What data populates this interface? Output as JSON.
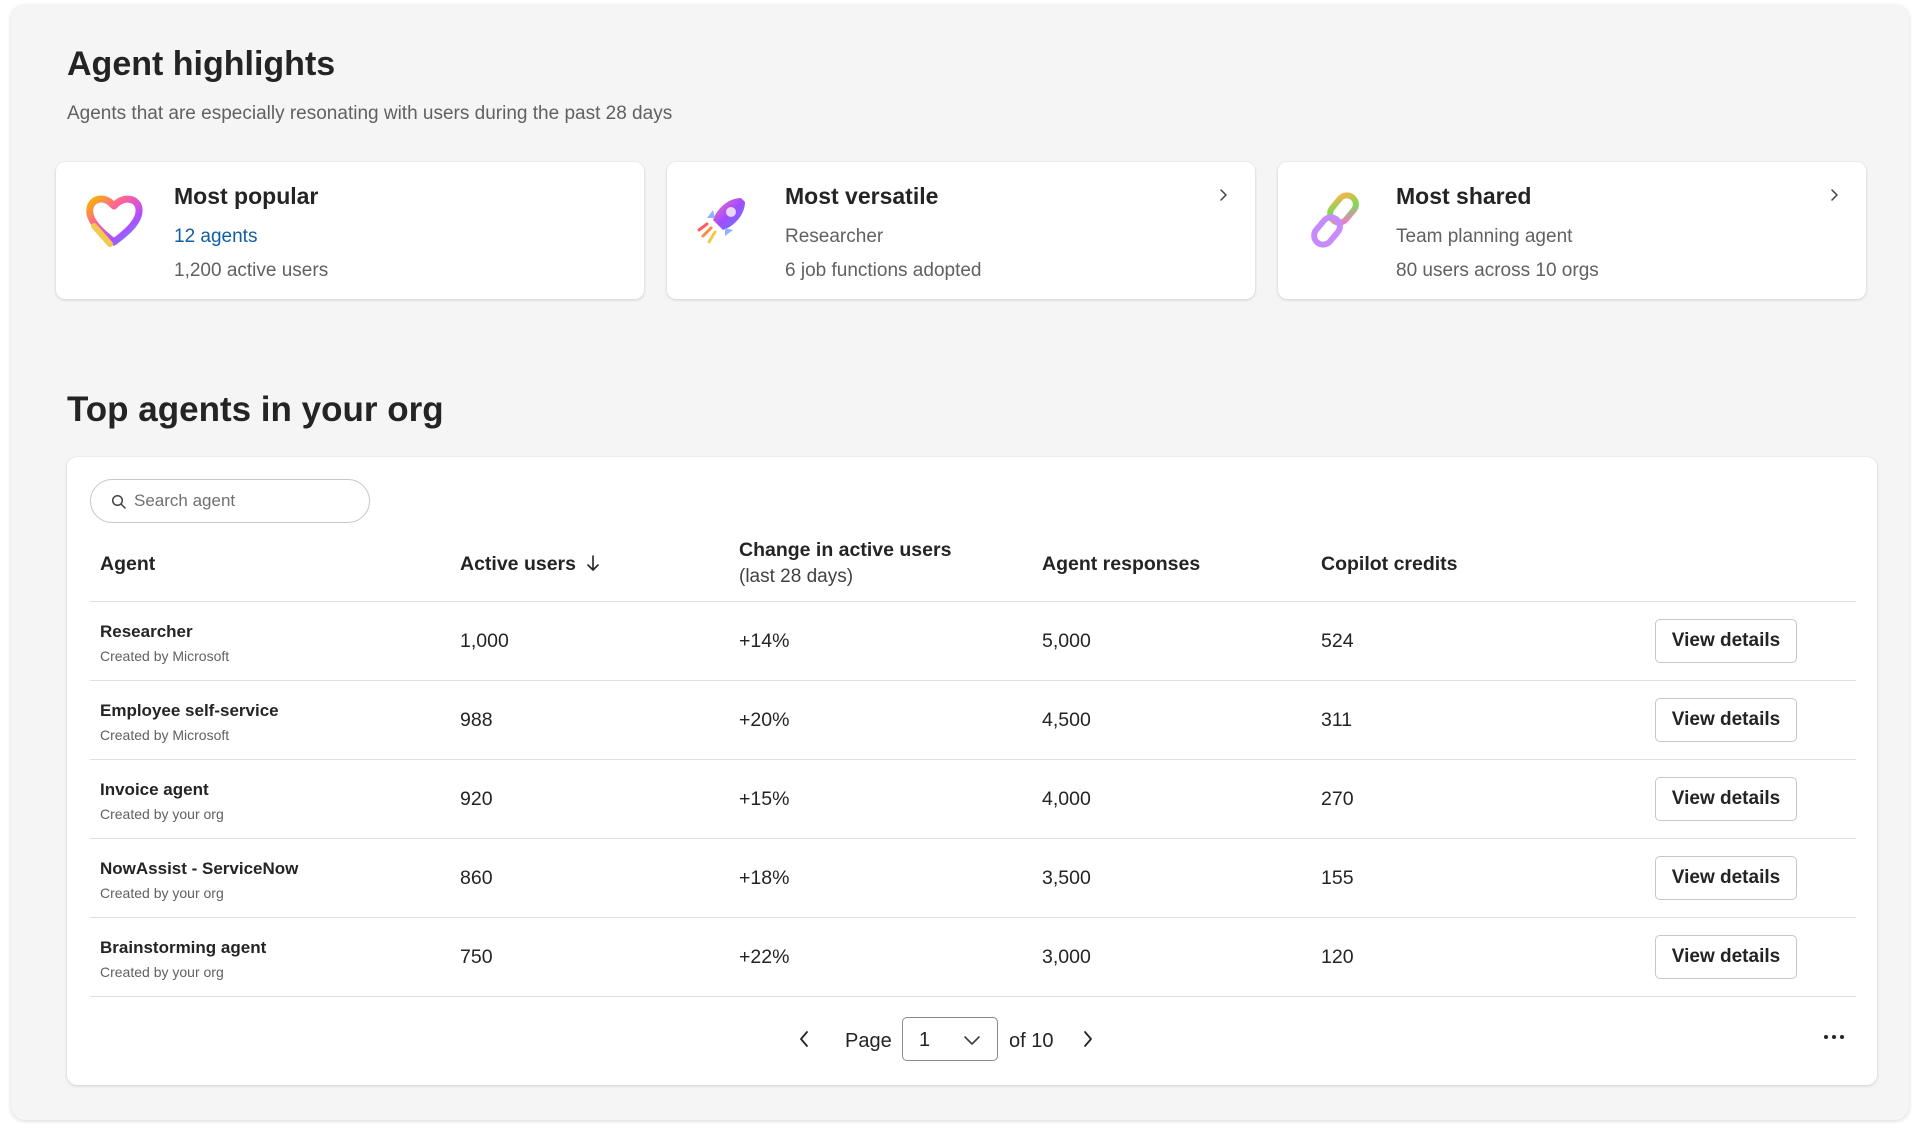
{
  "highlights": {
    "title": "Agent highlights",
    "subtitle": "Agents that are especially resonating with users during the past 28 days",
    "cards": [
      {
        "icon": "heart-icon",
        "title": "Most popular",
        "line1": "12 agents",
        "line2": "1,200 active users",
        "has_chevron": false
      },
      {
        "icon": "rocket-icon",
        "title": "Most versatile",
        "line1": "Researcher",
        "line2": "6 job functions adopted",
        "has_chevron": true
      },
      {
        "icon": "link-chain-icon",
        "title": "Most shared",
        "line1": "Team planning agent",
        "line2": "80 users across 10 orgs",
        "has_chevron": true
      }
    ]
  },
  "top_agents": {
    "title": "Top agents in your org",
    "search_placeholder": "Search agent",
    "columns": {
      "agent": "Agent",
      "active_users": "Active users",
      "change": "Change in active users",
      "change_sub": "(last 28 days)",
      "responses": "Agent responses",
      "credits": "Copilot credits"
    },
    "sort": {
      "column": "active_users",
      "direction": "descending"
    },
    "view_details_label": "View details",
    "rows": [
      {
        "name": "Researcher",
        "creator": "Created by Microsoft",
        "active_users": "1,000",
        "change": "+14%",
        "responses": "5,000",
        "credits": "524"
      },
      {
        "name": "Employee self-service",
        "creator": "Created by Microsoft",
        "active_users": "988",
        "change": "+20%",
        "responses": "4,500",
        "credits": "311"
      },
      {
        "name": "Invoice agent",
        "creator": "Created by your org",
        "active_users": "920",
        "change": "+15%",
        "responses": "4,000",
        "credits": "270"
      },
      {
        "name": "NowAssist - ServiceNow",
        "creator": "Created by your org",
        "active_users": "860",
        "change": "+18%",
        "responses": "3,500",
        "credits": "155"
      },
      {
        "name": "Brainstorming agent",
        "creator": "Created by your org",
        "active_users": "750",
        "change": "+22%",
        "responses": "3,000",
        "credits": "120"
      }
    ],
    "pagination": {
      "page_label": "Page",
      "current": "1",
      "total_label": "of 10"
    }
  }
}
